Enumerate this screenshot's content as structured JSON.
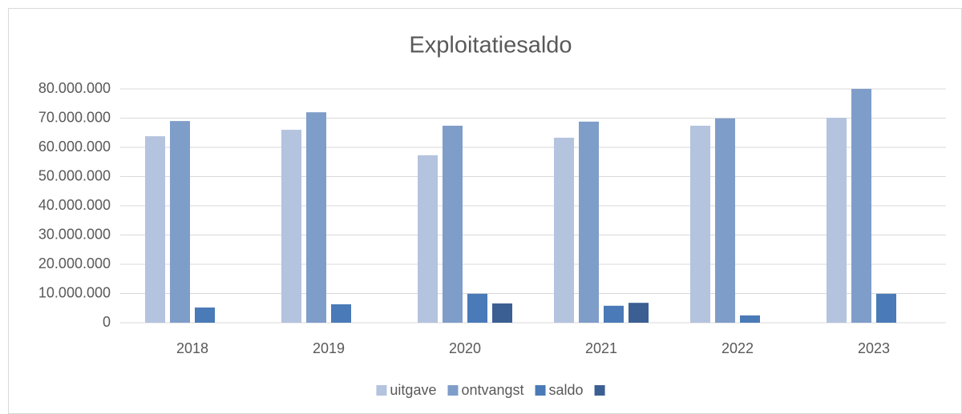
{
  "chart_data": {
    "type": "bar",
    "title": "Exploitatiesaldo",
    "categories": [
      "2018",
      "2019",
      "2020",
      "2021",
      "2022",
      "2023"
    ],
    "series": [
      {
        "name": "uitgave",
        "color": "#b4c3de",
        "values": [
          63800000,
          66000000,
          57300000,
          63300000,
          67400000,
          70100000
        ]
      },
      {
        "name": "ontvangst",
        "color": "#7f9dc9",
        "values": [
          69000000,
          72000000,
          67400000,
          68800000,
          69900000,
          80000000
        ]
      },
      {
        "name": "saldo",
        "color": "#4a7ab7",
        "values": [
          5200000,
          6300000,
          9900000,
          5800000,
          2500000,
          9900000
        ]
      },
      {
        "color": "#3b5f93",
        "values": [
          null,
          null,
          6600000,
          6800000,
          null,
          null
        ]
      }
    ],
    "ylim": [
      0,
      80000000
    ],
    "yticks": [
      0,
      {
        "value": 10000000,
        "label": "10.000.000"
      },
      {
        "value": 20000000,
        "label": "20.000.000"
      },
      {
        "value": 30000000,
        "label": "30.000.000"
      },
      {
        "value": 40000000,
        "label": "40.000.000"
      },
      {
        "value": 50000000,
        "label": "50.000.000"
      },
      {
        "value": 60000000,
        "label": "60.000.000"
      },
      {
        "value": 70000000,
        "label": "70.000.000"
      },
      {
        "value": 80000000,
        "label": "80.000.000"
      }
    ],
    "grid": true,
    "legend": "bottom"
  }
}
